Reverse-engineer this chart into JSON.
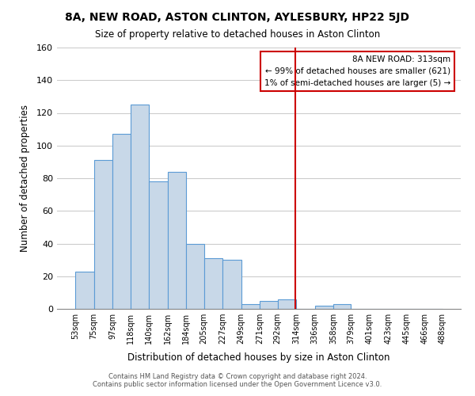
{
  "title": "8A, NEW ROAD, ASTON CLINTON, AYLESBURY, HP22 5JD",
  "subtitle": "Size of property relative to detached houses in Aston Clinton",
  "xlabel": "Distribution of detached houses by size in Aston Clinton",
  "ylabel": "Number of detached properties",
  "bar_left_edges": [
    53,
    75,
    97,
    118,
    140,
    162,
    184,
    205,
    227,
    249,
    271,
    292,
    314,
    336,
    358,
    379,
    401,
    423,
    445,
    466
  ],
  "bar_heights": [
    23,
    91,
    107,
    125,
    78,
    84,
    40,
    31,
    30,
    3,
    5,
    6,
    0,
    2,
    3,
    0,
    0,
    0,
    0,
    0
  ],
  "bar_color": "#c8d8e8",
  "bar_edge_color": "#5b9bd5",
  "vline_x": 313,
  "vline_color": "#cc0000",
  "ylim": [
    0,
    160
  ],
  "yticks": [
    0,
    20,
    40,
    60,
    80,
    100,
    120,
    140,
    160
  ],
  "tick_labels": [
    "53sqm",
    "75sqm",
    "97sqm",
    "118sqm",
    "140sqm",
    "162sqm",
    "184sqm",
    "205sqm",
    "227sqm",
    "249sqm",
    "271sqm",
    "292sqm",
    "314sqm",
    "336sqm",
    "358sqm",
    "379sqm",
    "401sqm",
    "423sqm",
    "445sqm",
    "466sqm",
    "488sqm"
  ],
  "annotation_title": "8A NEW ROAD: 313sqm",
  "annotation_line1": "← 99% of detached houses are smaller (621)",
  "annotation_line2": "1% of semi-detached houses are larger (5) →",
  "footer1": "Contains HM Land Registry data © Crown copyright and database right 2024.",
  "footer2": "Contains public sector information licensed under the Open Government Licence v3.0.",
  "bg_color": "#ffffff",
  "grid_color": "#cccccc"
}
